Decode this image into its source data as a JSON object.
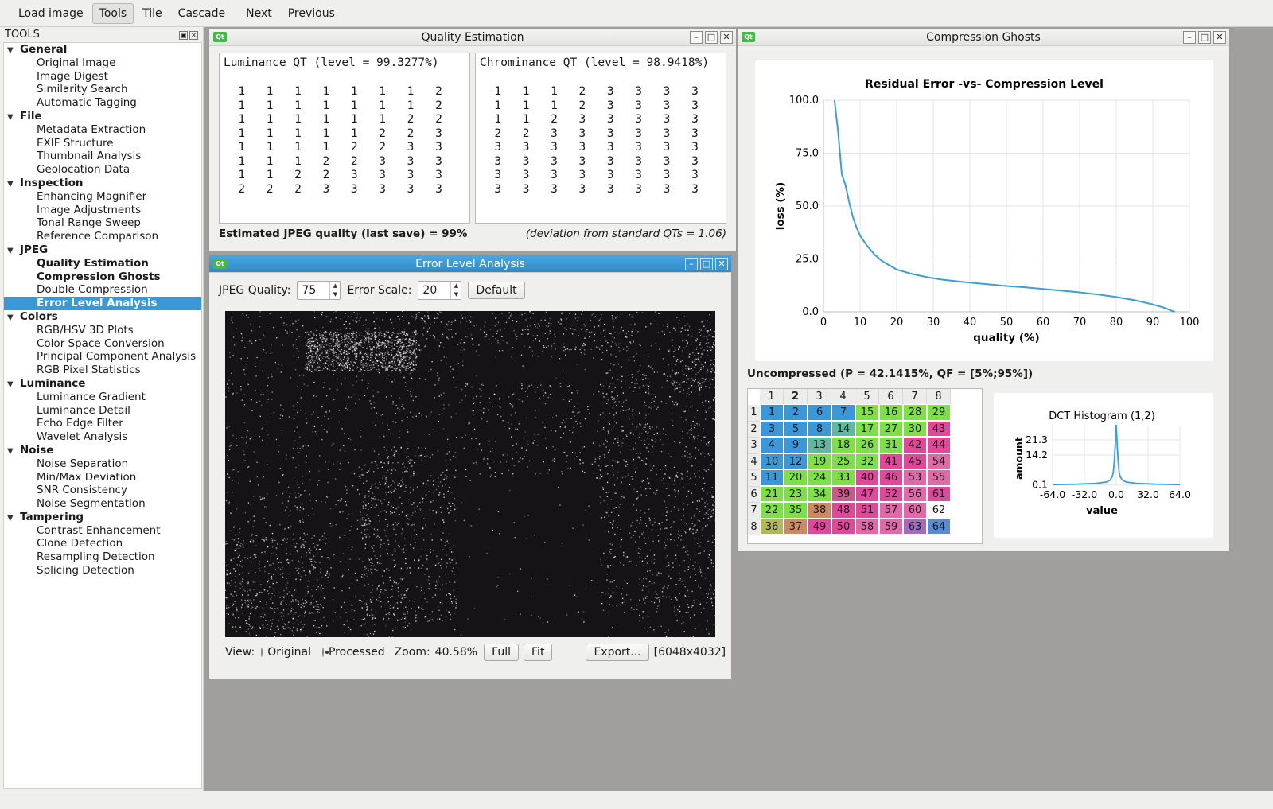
{
  "toolbar": {
    "buttons": [
      "Load image",
      "Tools",
      "Tile",
      "Cascade",
      "Next",
      "Previous"
    ]
  },
  "tools": {
    "header": "TOOLS",
    "categories": [
      {
        "label": "General",
        "items": [
          "Original Image",
          "Image Digest",
          "Similarity Search",
          "Automatic Tagging"
        ]
      },
      {
        "label": "File",
        "items": [
          "Metadata Extraction",
          "EXIF Structure",
          "Thumbnail Analysis",
          "Geolocation Data"
        ]
      },
      {
        "label": "Inspection",
        "items": [
          "Enhancing Magnifier",
          "Image Adjustments",
          "Tonal Range Sweep",
          "Reference Comparison"
        ]
      },
      {
        "label": "JPEG",
        "items": [
          "Quality Estimation",
          "Compression Ghosts",
          "Double Compression",
          "Error Level Analysis"
        ]
      },
      {
        "label": "Colors",
        "items": [
          "RGB/HSV 3D Plots",
          "Color Space Conversion",
          "Principal Component Analysis",
          "RGB Pixel Statistics"
        ]
      },
      {
        "label": "Luminance",
        "items": [
          "Luminance Gradient",
          "Luminance Detail",
          "Echo Edge Filter",
          "Wavelet Analysis"
        ]
      },
      {
        "label": "Noise",
        "items": [
          "Noise Separation",
          "Min/Max Deviation",
          "SNR Consistency",
          "Noise Segmentation"
        ]
      },
      {
        "label": "Tampering",
        "items": [
          "Contrast Enhancement",
          "Clone Detection",
          "Resampling Detection",
          "Splicing Detection"
        ]
      }
    ],
    "bold_items": [
      "Quality Estimation",
      "Compression Ghosts"
    ],
    "selected_item": "Error Level Analysis",
    "accent_color": "#3a98d8"
  },
  "quality_estimation": {
    "title": "Quality Estimation",
    "luminance": {
      "title": "Luminance QT (level = 99.3277%)",
      "table": [
        [
          1,
          1,
          1,
          1,
          1,
          1,
          1,
          2
        ],
        [
          1,
          1,
          1,
          1,
          1,
          1,
          1,
          2
        ],
        [
          1,
          1,
          1,
          1,
          1,
          1,
          2,
          2
        ],
        [
          1,
          1,
          1,
          1,
          1,
          2,
          2,
          3
        ],
        [
          1,
          1,
          1,
          1,
          2,
          2,
          3,
          3
        ],
        [
          1,
          1,
          1,
          2,
          2,
          3,
          3,
          3
        ],
        [
          1,
          1,
          2,
          2,
          3,
          3,
          3,
          3
        ],
        [
          2,
          2,
          2,
          3,
          3,
          3,
          3,
          3
        ]
      ]
    },
    "chrominance": {
      "title": "Chrominance QT (level = 98.9418%)",
      "table": [
        [
          1,
          1,
          1,
          2,
          3,
          3,
          3,
          3
        ],
        [
          1,
          1,
          1,
          2,
          3,
          3,
          3,
          3
        ],
        [
          1,
          1,
          2,
          3,
          3,
          3,
          3,
          3
        ],
        [
          2,
          2,
          3,
          3,
          3,
          3,
          3,
          3
        ],
        [
          3,
          3,
          3,
          3,
          3,
          3,
          3,
          3
        ],
        [
          3,
          3,
          3,
          3,
          3,
          3,
          3,
          3
        ],
        [
          3,
          3,
          3,
          3,
          3,
          3,
          3,
          3
        ],
        [
          3,
          3,
          3,
          3,
          3,
          3,
          3,
          3
        ]
      ]
    },
    "estimate": "Estimated JPEG quality (last save) = 99%",
    "deviation": "(deviation from standard QTs = 1.06)"
  },
  "ela": {
    "title": "Error Level Analysis",
    "quality_label": "JPEG Quality:",
    "quality_value": "75",
    "scale_label": "Error Scale:",
    "scale_value": "20",
    "default_button": "Default",
    "view_label": "View:",
    "view_original": "Original",
    "view_processed": "Processed",
    "view_selected": "Processed",
    "zoom_label": "Zoom:",
    "zoom_value": "40.58%",
    "full_button": "Full",
    "fit_button": "Fit",
    "export_button": "Export...",
    "image_size": "[6048x4032]"
  },
  "compression_ghosts": {
    "title": "Compression Ghosts",
    "uncompressed": "Uncompressed (P = 42.1415%, QF = [5%;95%])",
    "dct_columns": [
      "1",
      "2",
      "3",
      "4",
      "5",
      "6",
      "7",
      "8"
    ],
    "dct_order": [
      [
        1,
        2,
        6,
        7,
        15,
        16,
        28,
        29
      ],
      [
        3,
        5,
        8,
        14,
        17,
        27,
        30,
        43
      ],
      [
        4,
        9,
        13,
        18,
        26,
        31,
        42,
        44
      ],
      [
        10,
        12,
        19,
        25,
        32,
        41,
        45,
        54
      ],
      [
        11,
        20,
        24,
        33,
        40,
        46,
        53,
        55
      ],
      [
        21,
        23,
        34,
        39,
        47,
        52,
        56,
        61
      ],
      [
        22,
        35,
        38,
        48,
        51,
        57,
        60,
        62
      ],
      [
        36,
        37,
        49,
        50,
        58,
        59,
        63,
        64
      ]
    ],
    "dct_colors": [
      [
        "b",
        "b",
        "b",
        "b",
        "g",
        "g",
        "g",
        "g"
      ],
      [
        "b",
        "b",
        "b",
        "gb",
        "g",
        "g",
        "g",
        "m"
      ],
      [
        "b",
        "b",
        "gb",
        "g",
        "g",
        "g",
        "m",
        "m"
      ],
      [
        "b",
        "b",
        "g",
        "g",
        "g",
        "m",
        "m",
        "mf"
      ],
      [
        "b",
        "g",
        "g",
        "g",
        "m",
        "m",
        "mf",
        "mf"
      ],
      [
        "g",
        "g",
        "g",
        "mo",
        "m",
        "m",
        "mf",
        "m"
      ],
      [
        "g",
        "g",
        "o",
        "m",
        "m",
        "mf",
        "mf",
        "mp"
      ],
      [
        "gy",
        "o",
        "m",
        "m",
        "mf",
        "mf",
        "p",
        "bp"
      ]
    ],
    "palette": {
      "b": "#3a98d8",
      "g": "#7ee046",
      "gb": "#5fb9a0",
      "m": "#e0489a",
      "mf": "#e06aa8",
      "mo": "#c85a8a",
      "o": "#c98a64",
      "gy": "#b4b85c",
      "p": "#a26bc0",
      "bp": "#5a8ad0"
    }
  },
  "chart_data": [
    {
      "type": "line",
      "title": "Residual Error -vs- Compression Level",
      "xlabel": "quality (%)",
      "ylabel": "loss (%)",
      "xlim": [
        0,
        100
      ],
      "ylim": [
        0,
        100
      ],
      "x_ticks": [
        "0",
        "10",
        "20",
        "30",
        "40",
        "50",
        "60",
        "70",
        "80",
        "90",
        "100"
      ],
      "y_ticks": [
        "0.0",
        "25.0",
        "50.0",
        "75.0",
        "100.0"
      ],
      "grid": true,
      "line_color": "#3a9fd4",
      "series": [
        {
          "x": [
            3,
            4,
            5,
            6,
            7,
            8,
            9,
            10,
            12,
            14,
            16,
            18,
            20,
            24,
            28,
            32,
            36,
            40,
            45,
            50,
            55,
            60,
            65,
            70,
            75,
            80,
            85,
            90,
            93,
            95,
            96
          ],
          "y": [
            100,
            85,
            65,
            60,
            52,
            45,
            40,
            36,
            31,
            27,
            24,
            22,
            20,
            18,
            16.5,
            15.3,
            14.5,
            13.8,
            13,
            12.2,
            11.6,
            10.8,
            10,
            9.2,
            8.2,
            7,
            5.5,
            3.5,
            2,
            0.6,
            0
          ]
        }
      ]
    },
    {
      "type": "line",
      "title": "DCT Histogram (1,2)",
      "xlabel": "value",
      "ylabel": "amount",
      "xlim": [
        -64,
        64
      ],
      "x_ticks": [
        "-64.0",
        "-32.0",
        "0.0",
        "32.0",
        "64.0"
      ],
      "y_ticks": [
        "0.1",
        "14.2",
        "21.3"
      ],
      "grid": true,
      "line_color": "#3a9fd4",
      "series": [
        {
          "x": [
            -64,
            -40,
            -20,
            -10,
            -6,
            -4,
            -3,
            -2,
            -1,
            0,
            1,
            2,
            3,
            4,
            6,
            10,
            20,
            40,
            64
          ],
          "y": [
            0.3,
            0.5,
            0.9,
            1.5,
            2.5,
            4,
            6,
            11,
            19,
            28.4,
            19,
            11,
            6,
            4,
            2.5,
            1.5,
            0.9,
            0.5,
            0.3
          ]
        }
      ]
    }
  ]
}
